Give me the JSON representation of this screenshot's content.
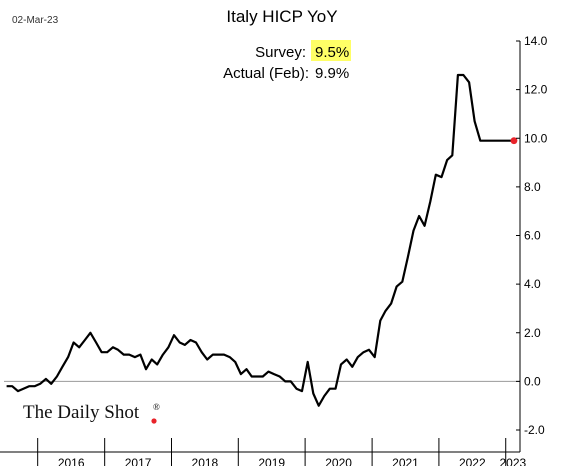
{
  "header": {
    "date": "02-Mar-23"
  },
  "annotation": {
    "survey_label": "Survey:",
    "survey_value": "9.5%",
    "actual_label": "Actual (Feb):",
    "actual_value": "9.9%"
  },
  "branding": {
    "logo_text": "The Daily Shot",
    "registered_mark": "®"
  },
  "colors": {
    "line": "#000000",
    "marker": "#e8232a",
    "highlight": "#ffff66",
    "grid": "#999999",
    "axis": "#000000"
  },
  "chart_data": {
    "type": "line",
    "title": "Italy HICP YoY",
    "xlabel": "",
    "ylabel": "",
    "ylim": [
      -2,
      14
    ],
    "yticks": [
      -2,
      0,
      2,
      4,
      6,
      8,
      10,
      12,
      14
    ],
    "ytick_labels": [
      "-2.0",
      "0.0",
      "2.0",
      "4.0",
      "6.0",
      "8.0",
      "10.0",
      "12.0",
      "14.0"
    ],
    "xlim": [
      "2015-07-01",
      "2023-03-20"
    ],
    "year_labels": [
      "2016",
      "2017",
      "2018",
      "2019",
      "2020",
      "2021",
      "2022",
      "2023"
    ],
    "grid": false,
    "series": [
      {
        "x": [
          "2015-07",
          "2015-08",
          "2015-09",
          "2015-10",
          "2015-11",
          "2015-12",
          "2016-01",
          "2016-02",
          "2016-03",
          "2016-04",
          "2016-05",
          "2016-06",
          "2016-07",
          "2016-08",
          "2016-09",
          "2016-10",
          "2016-11",
          "2016-12",
          "2017-01",
          "2017-02",
          "2017-03",
          "2017-04",
          "2017-05",
          "2017-06",
          "2017-07",
          "2017-08",
          "2017-09",
          "2017-10",
          "2017-11",
          "2017-12",
          "2018-01",
          "2018-02",
          "2018-03",
          "2018-04",
          "2018-05",
          "2018-06",
          "2018-07",
          "2018-08",
          "2018-09",
          "2018-10",
          "2018-11",
          "2018-12",
          "2019-01",
          "2019-02",
          "2019-03",
          "2019-04",
          "2019-05",
          "2019-06",
          "2019-07",
          "2019-08",
          "2019-09",
          "2019-10",
          "2019-11",
          "2019-12",
          "2020-01",
          "2020-02",
          "2020-03",
          "2020-04",
          "2020-05",
          "2020-06",
          "2020-07",
          "2020-08",
          "2020-09",
          "2020-10",
          "2020-11",
          "2020-12",
          "2021-01",
          "2021-02",
          "2021-03",
          "2021-04",
          "2021-05",
          "2021-06",
          "2021-07",
          "2021-08",
          "2021-09",
          "2021-10",
          "2021-11",
          "2021-12",
          "2022-01",
          "2022-02",
          "2022-03",
          "2022-04",
          "2022-05",
          "2022-06",
          "2022-07",
          "2022-08",
          "2022-09",
          "2022-10",
          "2022-11",
          "2022-12",
          "2023-01",
          "2023-02"
        ],
        "values": [
          -0.2,
          -0.2,
          -0.4,
          -0.3,
          -0.2,
          -0.2,
          -0.1,
          0.1,
          -0.1,
          0.2,
          0.6,
          1.0,
          1.6,
          1.4,
          1.7,
          2.0,
          1.6,
          1.2,
          1.2,
          1.4,
          1.3,
          1.1,
          1.1,
          1.0,
          1.1,
          0.5,
          0.9,
          0.7,
          1.1,
          1.4,
          1.9,
          1.6,
          1.5,
          1.7,
          1.6,
          1.2,
          0.9,
          1.1,
          1.1,
          1.1,
          1.0,
          0.8,
          0.3,
          0.5,
          0.2,
          0.2,
          0.2,
          0.4,
          0.3,
          0.2,
          0.0,
          0.0,
          -0.3,
          -0.4,
          0.8,
          -0.5,
          -1.0,
          -0.6,
          -0.3,
          -0.3,
          0.7,
          0.9,
          0.6,
          1.0,
          1.2,
          1.3,
          1.0,
          2.5,
          2.9,
          3.2,
          3.9,
          4.1,
          5.1,
          6.2,
          6.8,
          6.4,
          7.4,
          8.5,
          8.4,
          9.1,
          9.3,
          12.6,
          12.6,
          12.3,
          10.7,
          9.9,
          9.9,
          9.9,
          9.9,
          9.9,
          9.9,
          9.9
        ]
      }
    ],
    "highlight_point": {
      "x": "2023-02",
      "value": 9.9
    }
  }
}
